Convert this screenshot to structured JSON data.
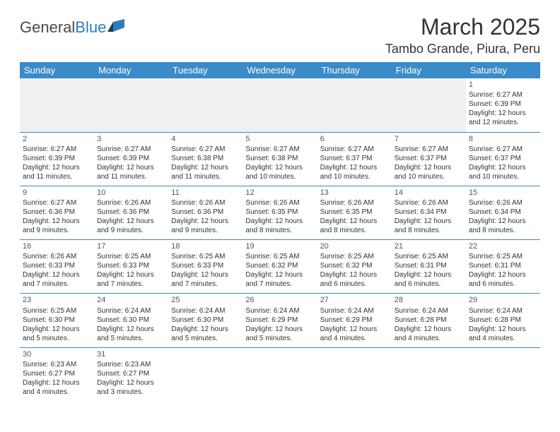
{
  "logo": {
    "text1": "General",
    "text2": "Blue"
  },
  "title": "March 2025",
  "location": "Tambo Grande, Piura, Peru",
  "colors": {
    "header_bg": "#3a8bc9",
    "header_text": "#ffffff",
    "cell_border": "#3a8bc9",
    "blank_bg": "#f0f0f0",
    "text": "#333333",
    "logo_gray": "#4a4a4a",
    "logo_blue": "#2f7bbf"
  },
  "day_headers": [
    "Sunday",
    "Monday",
    "Tuesday",
    "Wednesday",
    "Thursday",
    "Friday",
    "Saturday"
  ],
  "days": {
    "1": {
      "sunrise": "6:27 AM",
      "sunset": "6:39 PM",
      "daylight": "12 hours and 12 minutes."
    },
    "2": {
      "sunrise": "6:27 AM",
      "sunset": "6:39 PM",
      "daylight": "12 hours and 11 minutes."
    },
    "3": {
      "sunrise": "6:27 AM",
      "sunset": "6:39 PM",
      "daylight": "12 hours and 11 minutes."
    },
    "4": {
      "sunrise": "6:27 AM",
      "sunset": "6:38 PM",
      "daylight": "12 hours and 11 minutes."
    },
    "5": {
      "sunrise": "6:27 AM",
      "sunset": "6:38 PM",
      "daylight": "12 hours and 10 minutes."
    },
    "6": {
      "sunrise": "6:27 AM",
      "sunset": "6:37 PM",
      "daylight": "12 hours and 10 minutes."
    },
    "7": {
      "sunrise": "6:27 AM",
      "sunset": "6:37 PM",
      "daylight": "12 hours and 10 minutes."
    },
    "8": {
      "sunrise": "6:27 AM",
      "sunset": "6:37 PM",
      "daylight": "12 hours and 10 minutes."
    },
    "9": {
      "sunrise": "6:27 AM",
      "sunset": "6:36 PM",
      "daylight": "12 hours and 9 minutes."
    },
    "10": {
      "sunrise": "6:26 AM",
      "sunset": "6:36 PM",
      "daylight": "12 hours and 9 minutes."
    },
    "11": {
      "sunrise": "6:26 AM",
      "sunset": "6:36 PM",
      "daylight": "12 hours and 9 minutes."
    },
    "12": {
      "sunrise": "6:26 AM",
      "sunset": "6:35 PM",
      "daylight": "12 hours and 8 minutes."
    },
    "13": {
      "sunrise": "6:26 AM",
      "sunset": "6:35 PM",
      "daylight": "12 hours and 8 minutes."
    },
    "14": {
      "sunrise": "6:26 AM",
      "sunset": "6:34 PM",
      "daylight": "12 hours and 8 minutes."
    },
    "15": {
      "sunrise": "6:26 AM",
      "sunset": "6:34 PM",
      "daylight": "12 hours and 8 minutes."
    },
    "16": {
      "sunrise": "6:26 AM",
      "sunset": "6:33 PM",
      "daylight": "12 hours and 7 minutes."
    },
    "17": {
      "sunrise": "6:25 AM",
      "sunset": "6:33 PM",
      "daylight": "12 hours and 7 minutes."
    },
    "18": {
      "sunrise": "6:25 AM",
      "sunset": "6:33 PM",
      "daylight": "12 hours and 7 minutes."
    },
    "19": {
      "sunrise": "6:25 AM",
      "sunset": "6:32 PM",
      "daylight": "12 hours and 7 minutes."
    },
    "20": {
      "sunrise": "6:25 AM",
      "sunset": "6:32 PM",
      "daylight": "12 hours and 6 minutes."
    },
    "21": {
      "sunrise": "6:25 AM",
      "sunset": "6:31 PM",
      "daylight": "12 hours and 6 minutes."
    },
    "22": {
      "sunrise": "6:25 AM",
      "sunset": "6:31 PM",
      "daylight": "12 hours and 6 minutes."
    },
    "23": {
      "sunrise": "6:25 AM",
      "sunset": "6:30 PM",
      "daylight": "12 hours and 5 minutes."
    },
    "24": {
      "sunrise": "6:24 AM",
      "sunset": "6:30 PM",
      "daylight": "12 hours and 5 minutes."
    },
    "25": {
      "sunrise": "6:24 AM",
      "sunset": "6:30 PM",
      "daylight": "12 hours and 5 minutes."
    },
    "26": {
      "sunrise": "6:24 AM",
      "sunset": "6:29 PM",
      "daylight": "12 hours and 5 minutes."
    },
    "27": {
      "sunrise": "6:24 AM",
      "sunset": "6:29 PM",
      "daylight": "12 hours and 4 minutes."
    },
    "28": {
      "sunrise": "6:24 AM",
      "sunset": "6:28 PM",
      "daylight": "12 hours and 4 minutes."
    },
    "29": {
      "sunrise": "6:24 AM",
      "sunset": "6:28 PM",
      "daylight": "12 hours and 4 minutes."
    },
    "30": {
      "sunrise": "6:23 AM",
      "sunset": "6:27 PM",
      "daylight": "12 hours and 4 minutes."
    },
    "31": {
      "sunrise": "6:23 AM",
      "sunset": "6:27 PM",
      "daylight": "12 hours and 3 minutes."
    }
  },
  "labels": {
    "sunrise": "Sunrise:",
    "sunset": "Sunset:",
    "daylight": "Daylight:"
  },
  "layout": {
    "first_day_column": 6,
    "days_in_month": 31,
    "columns": 7
  }
}
